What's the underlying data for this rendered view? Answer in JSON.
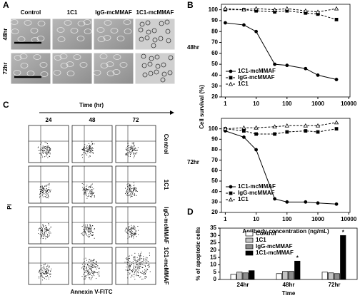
{
  "figure": {
    "panel_labels": [
      "A",
      "B",
      "C",
      "D"
    ],
    "panel_a": {
      "columns": [
        "Control",
        "1C1",
        "IgG-mcMMAF",
        "1C1-mcMMAF"
      ],
      "rows": [
        "48hr",
        "72hr"
      ]
    },
    "panel_b": {
      "ylabel": "Cell survival (%)",
      "xlabel": "Antibody concentration (ng/mL)"
    },
    "panel_c": {
      "title": "Time (hr)",
      "columns": [
        "24",
        "48",
        "72"
      ],
      "rows": [
        "Control",
        "1C1",
        "IgG-mcMMAF",
        "1C1-mcMMAF"
      ],
      "ylabel": "PI",
      "xlabel": "Annexin V-FITC"
    }
  },
  "chart_data": [
    {
      "type": "line",
      "label": "48hr",
      "log_x": true,
      "x": [
        1,
        4,
        10,
        40,
        100,
        400,
        1000,
        4000
      ],
      "series": [
        {
          "name": "1C1-mcMMAF",
          "color": "#000000",
          "marker": "circle",
          "dash": false,
          "values": [
            88,
            86,
            80,
            50,
            49,
            46,
            40,
            36
          ]
        },
        {
          "name": "IgG-mcMMAF",
          "color": "#000000",
          "marker": "square",
          "dash": true,
          "values": [
            100,
            100,
            99,
            98,
            99,
            97,
            96,
            91
          ]
        },
        {
          "name": "1C1",
          "color": "#000000",
          "marker": "triangle",
          "dash": true,
          "values": [
            101,
            100,
            101,
            100,
            101,
            99,
            98,
            101
          ]
        }
      ],
      "xlim": [
        0.75,
        11000
      ],
      "xticks": [
        1,
        10,
        100,
        1000,
        10000
      ],
      "ylim": [
        20,
        105
      ],
      "yticks": [
        20,
        30,
        40,
        50,
        60,
        70,
        80,
        90,
        100
      ],
      "legend": "lower left"
    },
    {
      "type": "line",
      "label": "72hr",
      "log_x": true,
      "x": [
        1,
        4,
        10,
        40,
        100,
        400,
        1000,
        4000
      ],
      "series": [
        {
          "name": "1C1-mcMMAF",
          "color": "#000000",
          "marker": "circle",
          "dash": false,
          "values": [
            98,
            92,
            80,
            33,
            30,
            30,
            29,
            28
          ]
        },
        {
          "name": "IgG-mcMMAF",
          "color": "#000000",
          "marker": "square",
          "dash": true,
          "values": [
            100,
            98,
            95,
            95,
            97,
            98,
            97,
            100
          ]
        },
        {
          "name": "1C1",
          "color": "#000000",
          "marker": "triangle",
          "dash": true,
          "values": [
            100,
            101,
            101,
            102,
            103,
            103,
            103,
            106
          ]
        }
      ],
      "xlim": [
        0.75,
        11000
      ],
      "xticks": [
        1,
        10,
        100,
        1000,
        10000
      ],
      "ylim": [
        20,
        110
      ],
      "yticks": [
        20,
        30,
        40,
        50,
        60,
        70,
        80,
        90,
        100
      ],
      "legend": "lower left"
    },
    {
      "type": "bar",
      "ylabel": "% of apoptotic cells",
      "xlabel": "Time",
      "categories": [
        "24hr",
        "48hr",
        "72hr"
      ],
      "series": [
        {
          "name": "Control",
          "color": "#ffffff",
          "values": [
            3.5,
            4,
            5
          ]
        },
        {
          "name": "1C1",
          "color": "#c4c4c4",
          "values": [
            5,
            5.5,
            4.5
          ]
        },
        {
          "name": "IgG-mcMMAF",
          "color": "#8c8c8c",
          "values": [
            4.5,
            5.5,
            4
          ]
        },
        {
          "name": "1C1-mcMMAF",
          "color": "#000000",
          "values": [
            6,
            12.5,
            30
          ]
        }
      ],
      "annotations": [
        "*",
        "*"
      ],
      "ylim": [
        0,
        35
      ],
      "yticks": [
        0,
        5,
        10,
        15,
        20,
        25,
        30,
        35
      ],
      "legend": "upper left"
    }
  ]
}
